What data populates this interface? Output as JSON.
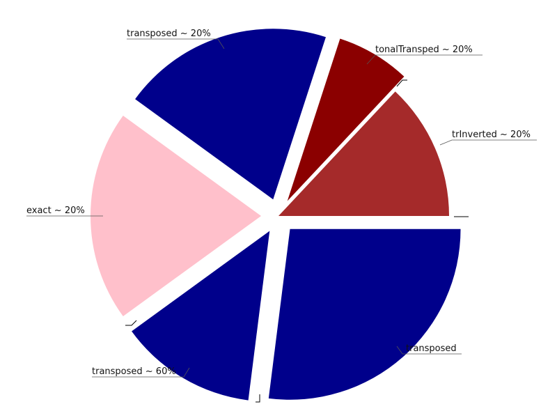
{
  "chart_data": {
    "type": "pie",
    "title": "",
    "slices": [
      {
        "label": "trInverted ~ 20%",
        "value": 13,
        "color": "#a52a2a",
        "exploded": false
      },
      {
        "label": "tonalTransped ~ 20%",
        "value": 7,
        "color": "#8b0000",
        "exploded": true
      },
      {
        "label": "transposed ~ 20%",
        "value": 20,
        "color": "#00008b",
        "exploded": true
      },
      {
        "label": "exact ~ 20%",
        "value": 20,
        "color": "#ffc0cb",
        "exploded": true
      },
      {
        "label": "transposed ~ 60%",
        "value": 13,
        "color": "#00008b",
        "exploded": true
      },
      {
        "label": "transposed",
        "value": 27,
        "color": "#00008b",
        "exploded": true
      }
    ],
    "unlabeled_slices": 3
  }
}
